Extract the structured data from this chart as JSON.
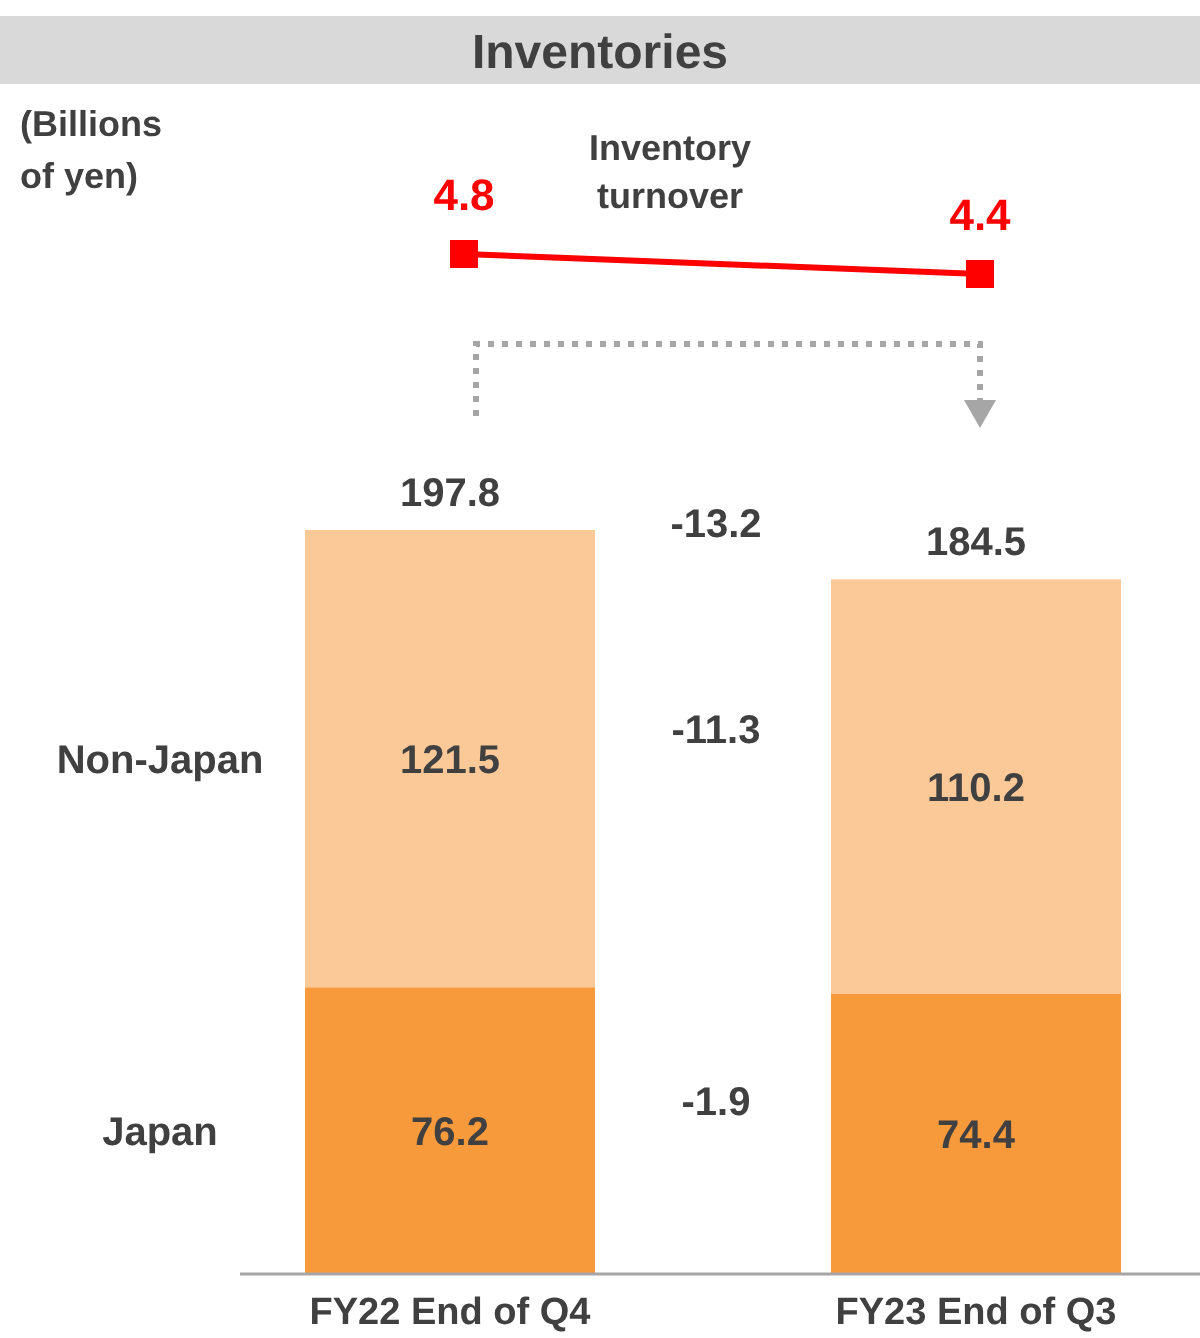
{
  "chart_data": [
    {
      "type": "line",
      "title": "Inventories",
      "series": [
        {
          "name": "Inventory turnover",
          "color": "#ff0000",
          "values": [
            4.8,
            4.4
          ]
        }
      ],
      "data_labels": true,
      "marker": "square",
      "line_style": "solid",
      "annotations": [
        "(Billions of yen)"
      ]
    },
    {
      "type": "bar",
      "stacked": true,
      "categories": [
        "FY22 End of Q4",
        "FY23 End of Q3"
      ],
      "series": [
        {
          "name": "Japan",
          "color": "#f79a3c",
          "values": [
            76.2,
            74.4
          ]
        },
        {
          "name": "Non-Japan",
          "color": "#fbc898",
          "values": [
            121.5,
            110.2
          ]
        }
      ],
      "totals": [
        "197.8",
        "184.5"
      ],
      "data_labels": true,
      "annotations": [
        "-13.2",
        "-11.3",
        "-1.9"
      ]
    }
  ]
}
